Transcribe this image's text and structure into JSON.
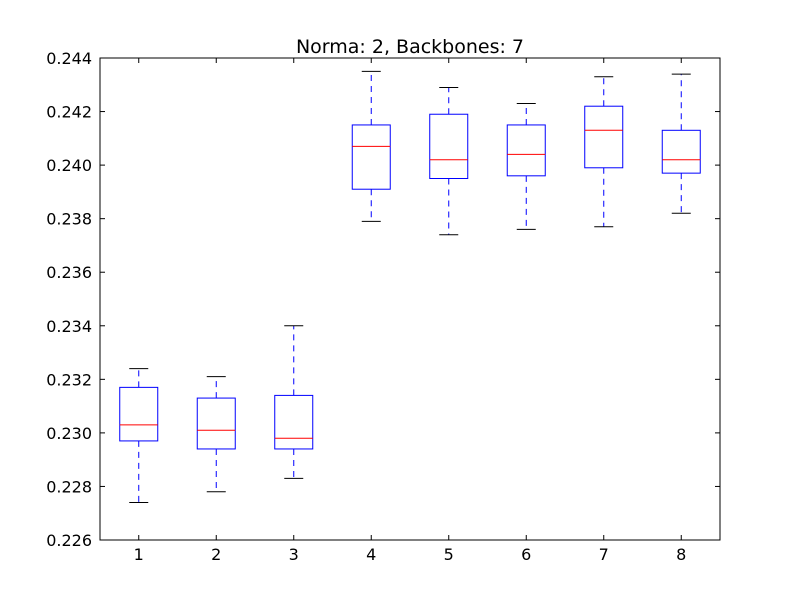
{
  "chart_data": {
    "type": "boxplot",
    "title": "Norma: 2, Backbones: 7",
    "xlabel": "",
    "ylabel": "",
    "categories": [
      "1",
      "2",
      "3",
      "4",
      "5",
      "6",
      "7",
      "8"
    ],
    "ylim": [
      0.226,
      0.244
    ],
    "yticks": [
      "0.226",
      "0.228",
      "0.230",
      "0.232",
      "0.234",
      "0.236",
      "0.238",
      "0.240",
      "0.242",
      "0.244"
    ],
    "grid": false,
    "boxes": [
      {
        "label": "1",
        "whisker_low": 0.2274,
        "q1": 0.2297,
        "median": 0.2303,
        "q3": 0.2317,
        "whisker_high": 0.2324
      },
      {
        "label": "2",
        "whisker_low": 0.2278,
        "q1": 0.2294,
        "median": 0.2301,
        "q3": 0.2313,
        "whisker_high": 0.2321
      },
      {
        "label": "3",
        "whisker_low": 0.2283,
        "q1": 0.2294,
        "median": 0.2298,
        "q3": 0.2314,
        "whisker_high": 0.234
      },
      {
        "label": "4",
        "whisker_low": 0.2379,
        "q1": 0.2391,
        "median": 0.2407,
        "q3": 0.2415,
        "whisker_high": 0.2435
      },
      {
        "label": "5",
        "whisker_low": 0.2374,
        "q1": 0.2395,
        "median": 0.2402,
        "q3": 0.2419,
        "whisker_high": 0.2429
      },
      {
        "label": "6",
        "whisker_low": 0.2376,
        "q1": 0.2396,
        "median": 0.2404,
        "q3": 0.2415,
        "whisker_high": 0.2423
      },
      {
        "label": "7",
        "whisker_low": 0.2377,
        "q1": 0.2399,
        "median": 0.2413,
        "q3": 0.2422,
        "whisker_high": 0.2433
      },
      {
        "label": "8",
        "whisker_low": 0.2382,
        "q1": 0.2397,
        "median": 0.2402,
        "q3": 0.2413,
        "whisker_high": 0.2434
      }
    ],
    "colors": {
      "box": "#0000ff",
      "median": "#ff0000",
      "cap": "#000000",
      "axes": "#000000"
    }
  }
}
